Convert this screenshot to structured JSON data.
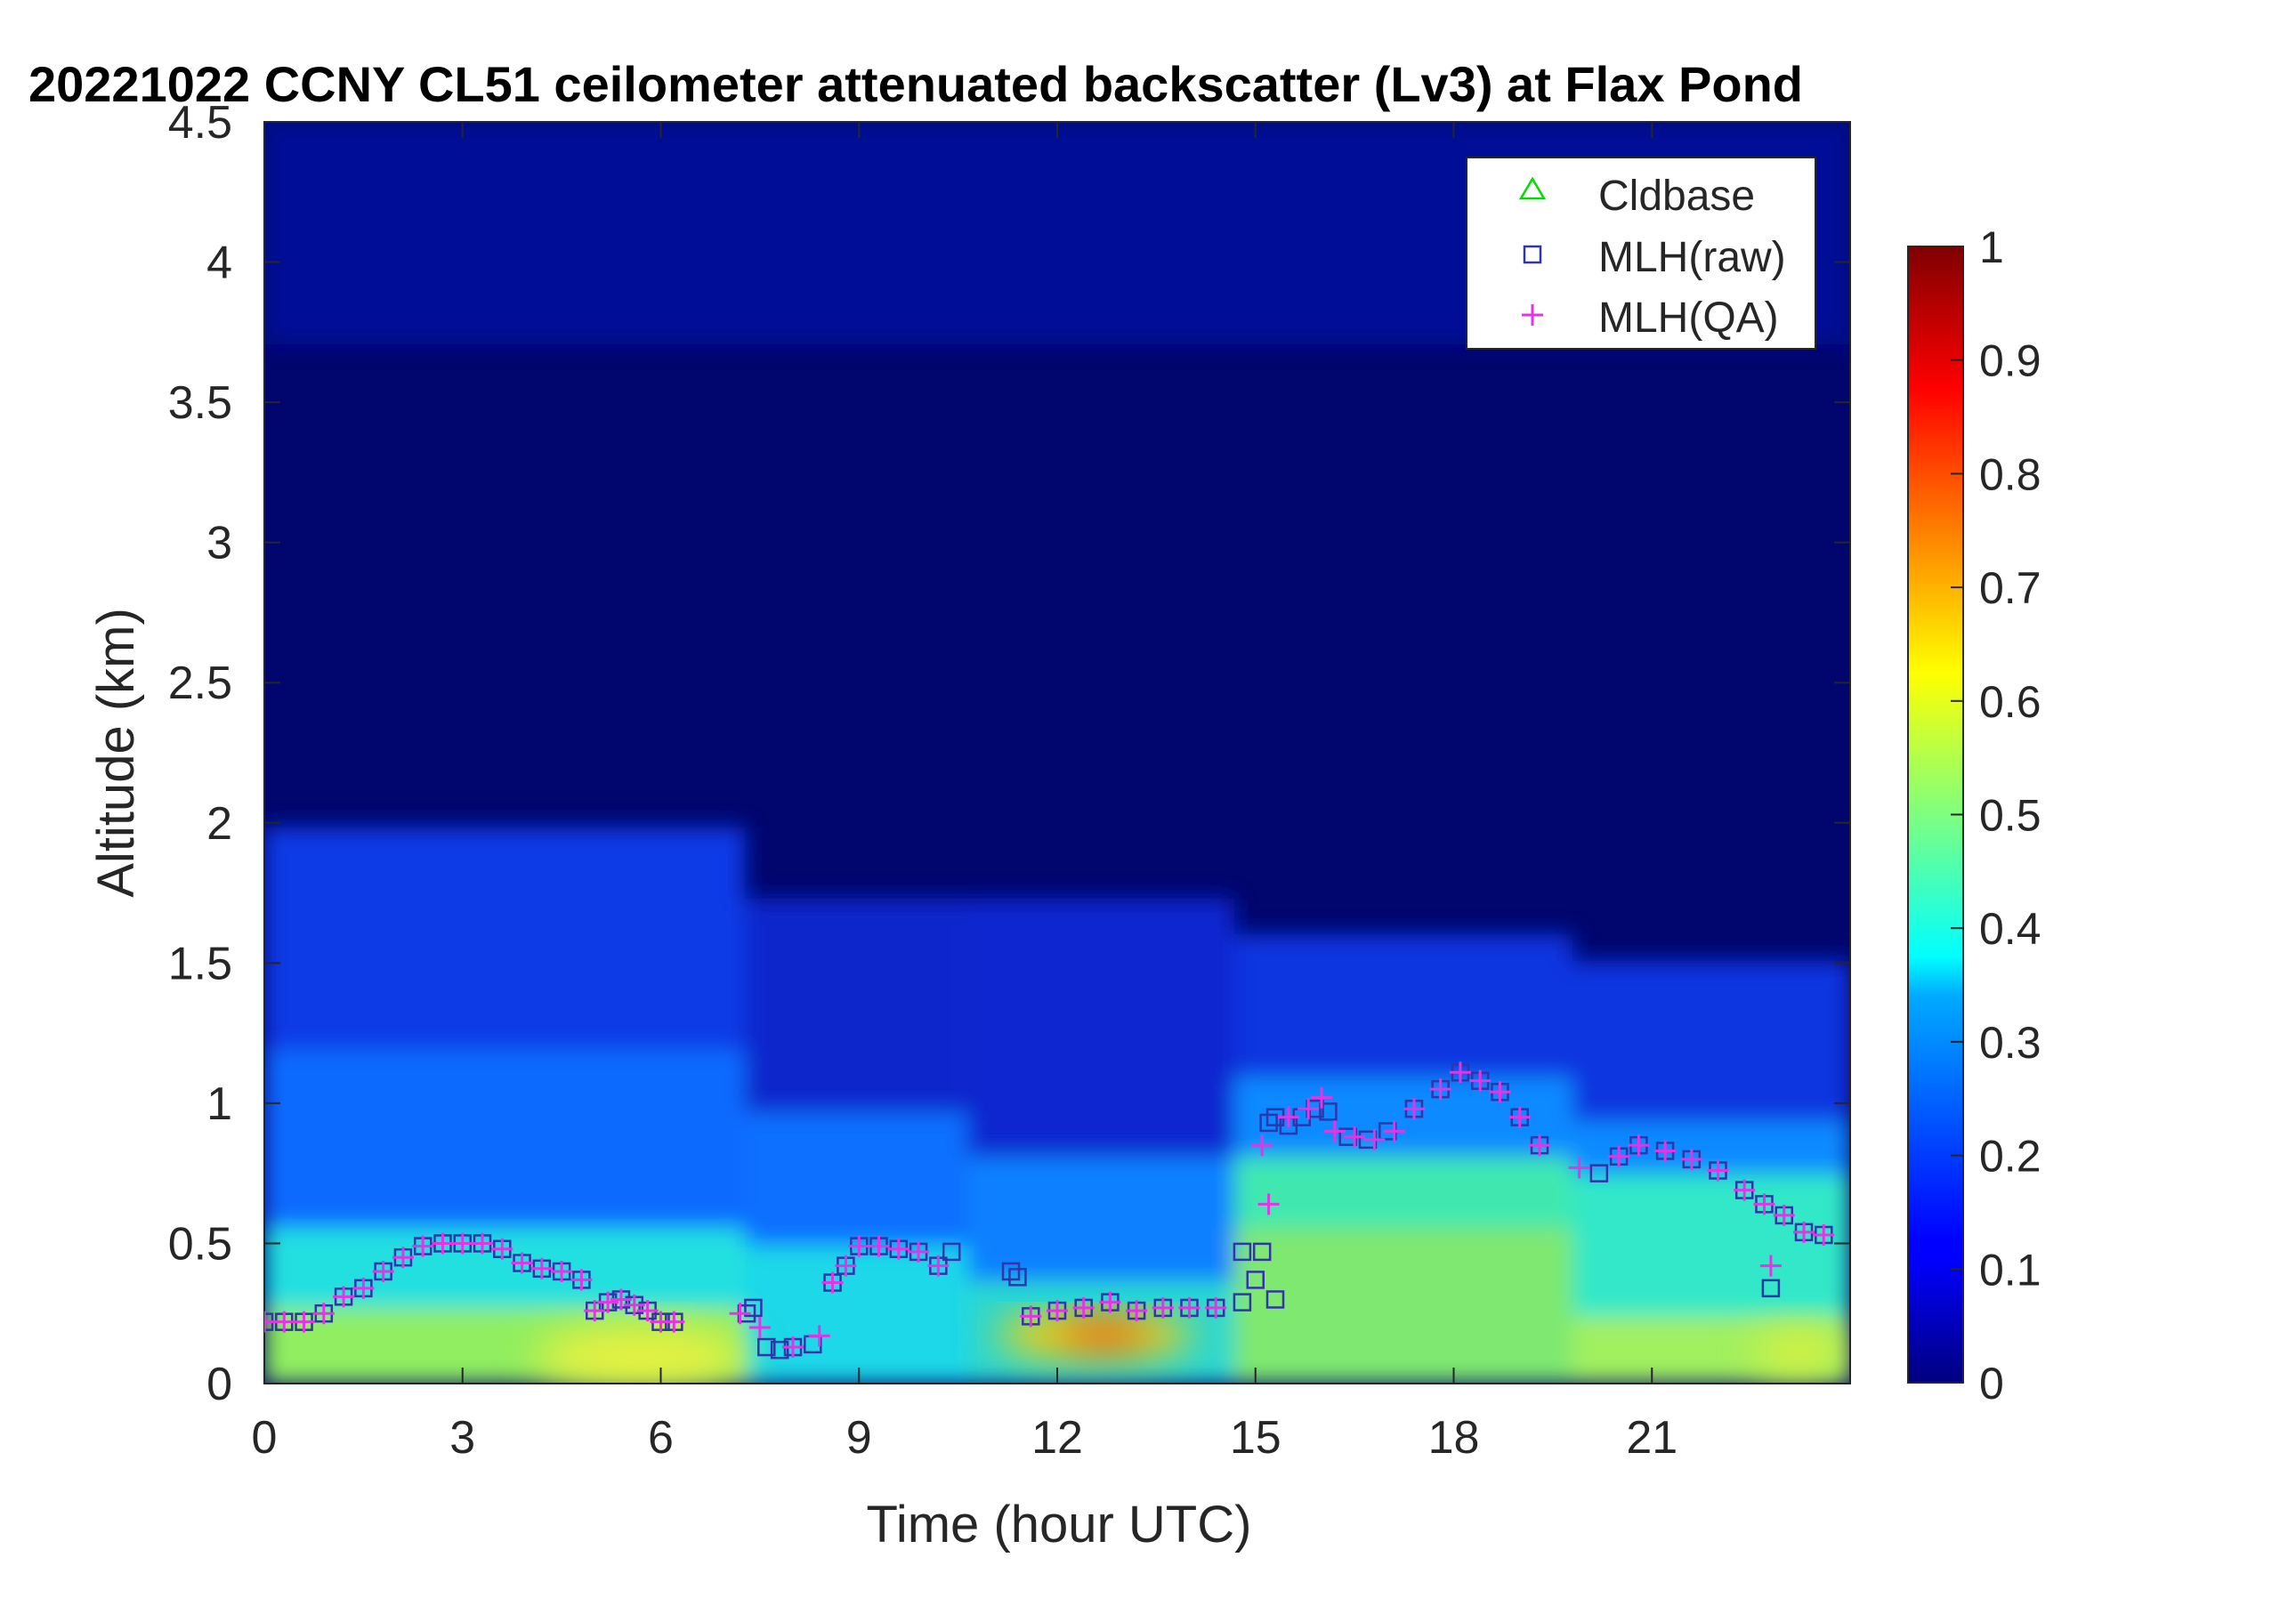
{
  "chart_data": {
    "type": "heatmap",
    "title": "20221022 CCNY CL51 ceilometer attenuated backscatter (Lv3) at Flax Pond",
    "xlabel": "Time (hour UTC)",
    "ylabel": "Altitude (km)",
    "xlim": [
      0,
      24
    ],
    "ylim": [
      0,
      4.5
    ],
    "x_ticks": [
      0,
      3,
      6,
      9,
      12,
      15,
      18,
      21
    ],
    "x_tick_labels": [
      "0",
      "3",
      "6",
      "9",
      "12",
      "15",
      "18",
      "21"
    ],
    "y_ticks": [
      0,
      0.5,
      1,
      1.5,
      2,
      2.5,
      3,
      3.5,
      4,
      4.5
    ],
    "y_tick_labels": [
      "0",
      "0.5",
      "1",
      "1.5",
      "2",
      "2.5",
      "3",
      "3.5",
      "4",
      "4.5"
    ],
    "colorbar": {
      "colormap": "jet",
      "clim": [
        0,
        1
      ],
      "ticks": [
        0,
        0.1,
        0.2,
        0.3,
        0.4,
        0.5,
        0.6,
        0.7,
        0.8,
        0.9,
        1
      ],
      "tick_labels": [
        "0",
        "0.1",
        "0.2",
        "0.3",
        "0.4",
        "0.5",
        "0.6",
        "0.7",
        "0.8",
        "0.9",
        "1"
      ]
    },
    "legend": {
      "placement": "top-right",
      "entries": [
        {
          "label": "Cldbase",
          "marker": "triangle",
          "color": "#00dd00"
        },
        {
          "label": "MLH(raw)",
          "marker": "square",
          "color": "#3333aa"
        },
        {
          "label": "MLH(QA)",
          "marker": "plus",
          "color": "#e633e6"
        }
      ]
    },
    "colors": {
      "mlh_raw": "#3333aa",
      "mlh_qa": "#e633e6",
      "cldbase": "#00dd00"
    },
    "series": [
      {
        "name": "MLH(raw)",
        "x": [
          0,
          0.3,
          0.6,
          0.9,
          1.2,
          1.5,
          1.8,
          2.1,
          2.4,
          2.7,
          3.0,
          3.3,
          3.6,
          3.9,
          4.2,
          4.5,
          4.8,
          5.0,
          5.2,
          5.4,
          5.6,
          5.8,
          6.0,
          6.2,
          7.3,
          7.4,
          7.6,
          7.8,
          8.0,
          8.3,
          8.6,
          8.8,
          9.0,
          9.3,
          9.6,
          9.9,
          10.2,
          10.4,
          11.3,
          11.4,
          11.6,
          12.0,
          12.4,
          12.8,
          13.2,
          13.6,
          14.0,
          14.4,
          14.8,
          15.0,
          15.1,
          15.2,
          15.3,
          15.5,
          15.7,
          15.9,
          16.1,
          16.4,
          16.7,
          17.0,
          17.4,
          17.8,
          18.1,
          18.4,
          18.7,
          19.0,
          19.3,
          20.2,
          20.5,
          20.8,
          21.2,
          21.6,
          22.0,
          22.4,
          22.7,
          23.0,
          23.3,
          23.6,
          22.8,
          15.3,
          14.8
        ],
        "values": [
          0.22,
          0.22,
          0.22,
          0.25,
          0.31,
          0.34,
          0.4,
          0.45,
          0.49,
          0.5,
          0.5,
          0.5,
          0.48,
          0.43,
          0.41,
          0.4,
          0.37,
          0.26,
          0.29,
          0.3,
          0.28,
          0.26,
          0.22,
          0.22,
          0.25,
          0.27,
          0.13,
          0.12,
          0.13,
          0.14,
          0.36,
          0.42,
          0.49,
          0.49,
          0.48,
          0.47,
          0.42,
          0.47,
          0.4,
          0.38,
          0.24,
          0.26,
          0.27,
          0.29,
          0.26,
          0.27,
          0.27,
          0.27,
          0.29,
          0.37,
          0.47,
          0.93,
          0.95,
          0.92,
          0.95,
          0.98,
          0.97,
          0.88,
          0.87,
          0.9,
          0.98,
          1.05,
          1.11,
          1.08,
          1.04,
          0.95,
          0.85,
          0.75,
          0.81,
          0.85,
          0.83,
          0.8,
          0.76,
          0.69,
          0.64,
          0.6,
          0.54,
          0.53,
          0.34,
          0.3,
          0.47
        ]
      },
      {
        "name": "MLH(QA)",
        "x": [
          0,
          0.3,
          0.6,
          0.9,
          1.2,
          1.5,
          1.8,
          2.1,
          2.4,
          2.7,
          3.0,
          3.3,
          3.6,
          3.9,
          4.2,
          4.5,
          4.8,
          5.0,
          5.2,
          5.4,
          5.6,
          5.8,
          6.0,
          6.2,
          7.2,
          7.5,
          8.0,
          8.4,
          8.6,
          8.8,
          9.0,
          9.3,
          9.6,
          9.9,
          10.2,
          11.6,
          12.0,
          12.4,
          12.8,
          13.2,
          13.6,
          14.0,
          14.4,
          15.1,
          15.2,
          15.5,
          15.8,
          16.0,
          16.2,
          16.5,
          16.8,
          17.1,
          17.4,
          17.8,
          18.1,
          18.4,
          18.7,
          19.0,
          19.3,
          19.9,
          20.5,
          20.8,
          21.2,
          21.6,
          22.0,
          22.4,
          22.7,
          22.8,
          23.0,
          23.3,
          23.6
        ],
        "values": [
          0.22,
          0.22,
          0.22,
          0.25,
          0.31,
          0.34,
          0.4,
          0.45,
          0.49,
          0.5,
          0.5,
          0.5,
          0.48,
          0.43,
          0.41,
          0.4,
          0.37,
          0.26,
          0.29,
          0.3,
          0.28,
          0.26,
          0.22,
          0.22,
          0.25,
          0.2,
          0.13,
          0.17,
          0.36,
          0.42,
          0.49,
          0.49,
          0.48,
          0.47,
          0.42,
          0.24,
          0.26,
          0.27,
          0.29,
          0.26,
          0.27,
          0.27,
          0.27,
          0.85,
          0.64,
          0.95,
          0.98,
          1.02,
          0.9,
          0.88,
          0.87,
          0.9,
          0.98,
          1.05,
          1.11,
          1.08,
          1.04,
          0.95,
          0.85,
          0.77,
          0.81,
          0.85,
          0.83,
          0.8,
          0.76,
          0.69,
          0.64,
          0.42,
          0.6,
          0.54,
          0.53
        ]
      },
      {
        "name": "Cldbase",
        "x": [],
        "values": []
      }
    ]
  }
}
